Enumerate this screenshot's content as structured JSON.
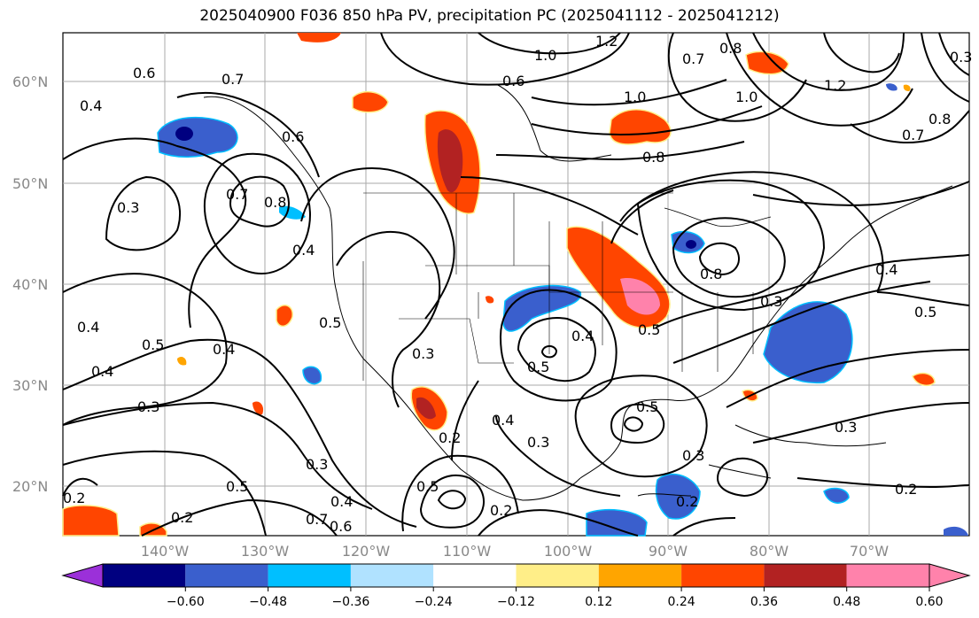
{
  "title": "2025040900 F036 850 hPa PV, precipitation PC (2025041112 - 2025041212)",
  "map": {
    "lat_labels": [
      "60°N",
      "50°N",
      "40°N",
      "30°N",
      "20°N"
    ],
    "lon_labels": [
      "140°W",
      "130°W",
      "120°W",
      "110°W",
      "100°W",
      "90°W",
      "80°W",
      "70°W"
    ],
    "contour_labels": [
      "1.0",
      "1.2",
      "0.8",
      "0.7",
      "0.6",
      "0.6",
      "0.4",
      "0.3",
      "0.7",
      "0.8",
      "0.6",
      "0.4",
      "0.5",
      "0.4",
      "0.4",
      "0.5",
      "0.3",
      "0.4",
      "0.5",
      "0.3",
      "0.3",
      "0.5",
      "0.4",
      "0.5",
      "0.3",
      "0.2",
      "0.5",
      "0.2",
      "0.2",
      "0.4",
      "0.6",
      "0.7",
      "0.2",
      "0.3",
      "0.4",
      "0.5",
      "0.3",
      "0.2",
      "0.2",
      "0.8",
      "1.0",
      "0.8",
      "0.7",
      "0.7",
      "1.0",
      "0.8",
      "1.2",
      "0.3",
      "0.4",
      "0.5",
      "0.3"
    ]
  },
  "colorbar": {
    "ticks": [
      "−0.60",
      "−0.48",
      "−0.36",
      "−0.24",
      "−0.12",
      "0.12",
      "0.24",
      "0.36",
      "0.48",
      "0.60"
    ],
    "colors": [
      "#9b30d9",
      "#000080",
      "#3a5fcd",
      "#00bfff",
      "#b0e2ff",
      "#ffffff",
      "#ffee88",
      "#ffa500",
      "#ff4500",
      "#b22222",
      "#ff82ab",
      "#ff82ab"
    ]
  }
}
